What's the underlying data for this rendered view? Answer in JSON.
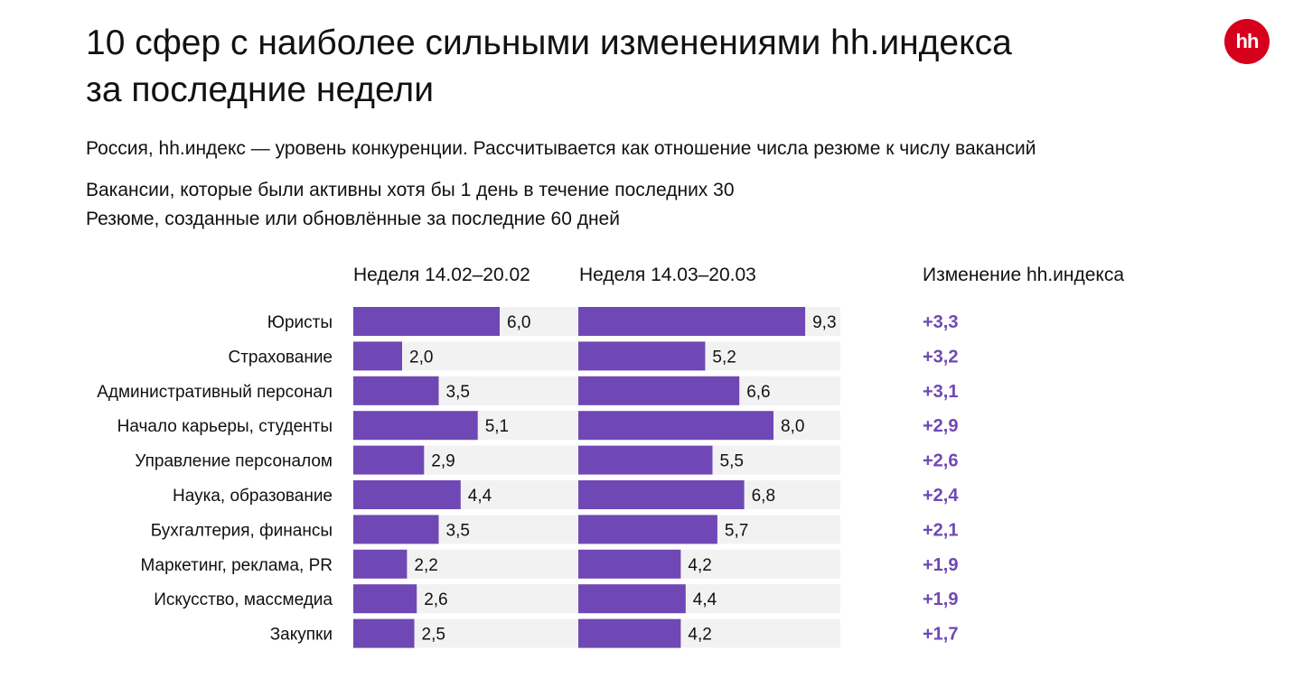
{
  "title_line1": "10 сфер с наиболее сильными изменениями hh.индекса",
  "title_line2": "за последние недели",
  "subtitle": "Россия, hh.индекс — уровень конкуренции. Рассчитывается как отношение числа резюме к числу вакансий",
  "note_vacancies": "Вакансии, которые были активны хотя бы 1 день в течение последних 30",
  "note_resumes": "Резюме, созданные или обновлённые за последние 60 дней",
  "logo_text": "hh",
  "colors": {
    "bar": "#6f48b5",
    "track": "#f2f2f2",
    "change": "#6f48b5",
    "logo": "#d6001c"
  },
  "chart_data": {
    "type": "bar",
    "orientation": "horizontal",
    "categories": [
      "Юристы",
      "Страхование",
      "Административный персонал",
      "Начало карьеры, студенты",
      "Управление персоналом",
      "Наука, образование",
      "Бухгалтерия, финансы",
      "Маркетинг, реклама, PR",
      "Искусство, массмедиа",
      "Закупки"
    ],
    "series": [
      {
        "name": "Неделя 14.02–20.02",
        "values": [
          6.0,
          2.0,
          3.5,
          5.1,
          2.9,
          4.4,
          3.5,
          2.2,
          2.6,
          2.5
        ],
        "labels": [
          "6,0",
          "2,0",
          "3,5",
          "5,1",
          "2,9",
          "4,4",
          "3,5",
          "2,2",
          "2,6",
          "2,5"
        ]
      },
      {
        "name": "Неделя 14.03–20.03",
        "values": [
          9.3,
          5.2,
          6.6,
          8.0,
          5.5,
          6.8,
          5.7,
          4.2,
          4.4,
          4.2
        ],
        "labels": [
          "9,3",
          "5,2",
          "6,6",
          "8,0",
          "5,5",
          "6,8",
          "5,7",
          "4,2",
          "4,4",
          "4,2"
        ]
      }
    ],
    "change": {
      "name": "Изменение hh.индекса",
      "values": [
        3.3,
        3.2,
        3.1,
        2.9,
        2.6,
        2.4,
        2.1,
        1.9,
        1.9,
        1.7
      ],
      "labels": [
        "+3,3",
        "+3,2",
        "+3,1",
        "+2,9",
        "+2,6",
        "+2,4",
        "+2,1",
        "+1,9",
        "+1,9",
        "+1,7"
      ]
    },
    "xlim": [
      0,
      10
    ]
  }
}
